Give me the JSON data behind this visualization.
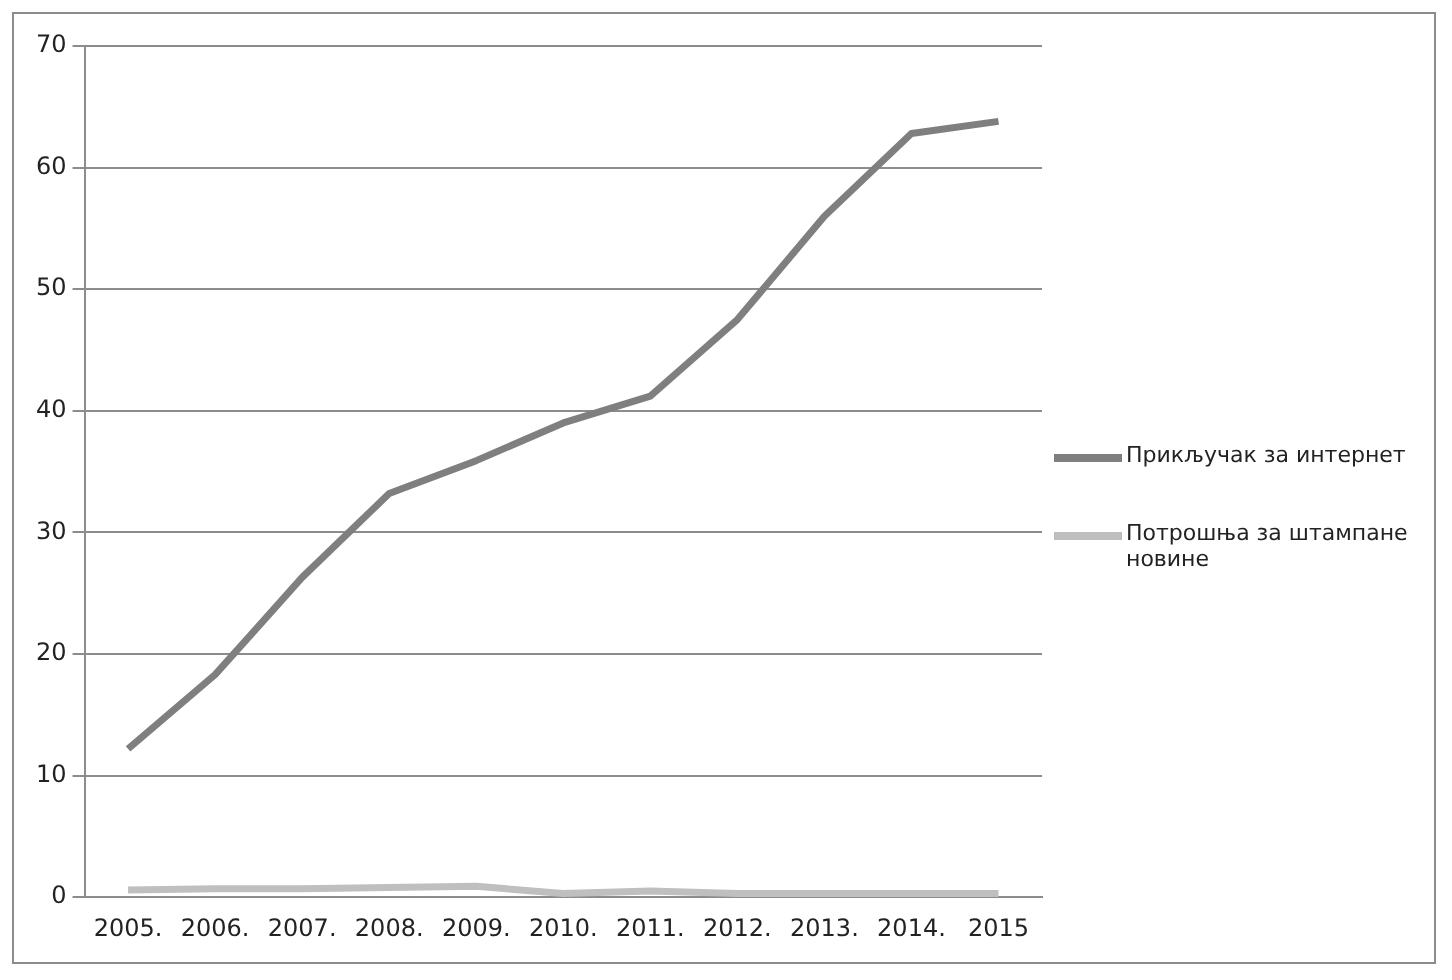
{
  "chart_data": {
    "type": "line",
    "categories": [
      "2005.",
      "2006.",
      "2007.",
      "2008.",
      "2009.",
      "2010.",
      "2011.",
      "2012.",
      "2013.",
      "2014.",
      "2015"
    ],
    "series": [
      {
        "name": "Прикључак за интернет",
        "color": "#7f7f7f",
        "values": [
          12.2,
          18.3,
          26.3,
          33.2,
          35.9,
          39.0,
          41.2,
          47.5,
          56.0,
          62.8,
          63.8
        ]
      },
      {
        "name": "Потрошња за штампане новине",
        "color": "#bfbfbf",
        "values": [
          0.6,
          0.7,
          0.7,
          0.8,
          0.9,
          0.3,
          0.5,
          0.3,
          0.3,
          0.3,
          0.3
        ]
      }
    ],
    "ylim": [
      0,
      70
    ],
    "yticks": [
      0,
      10,
      20,
      30,
      40,
      50,
      60,
      70
    ],
    "grid": "y",
    "legend": "right",
    "marker": "none",
    "line_style": "solid"
  }
}
